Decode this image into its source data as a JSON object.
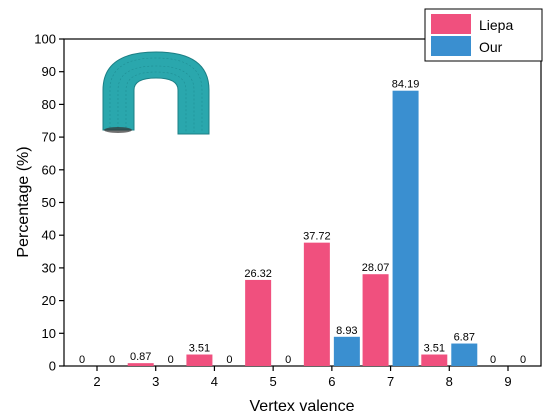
{
  "chart_data": {
    "type": "bar",
    "xlabel": "Vertex valence",
    "ylabel": "Percentage (%)",
    "ylim": [
      0,
      100
    ],
    "yticks": [
      0,
      10,
      20,
      30,
      40,
      50,
      60,
      70,
      80,
      90,
      100
    ],
    "categories": [
      "2",
      "3",
      "4",
      "5",
      "6",
      "7",
      "8",
      "9"
    ],
    "series": [
      {
        "name": "Liepa",
        "color": "#f0507e",
        "values": [
          0,
          0.87,
          3.51,
          26.32,
          37.72,
          28.07,
          3.51,
          0
        ],
        "labels": [
          "0",
          "0.87",
          "3.51",
          "26.32",
          "37.72",
          "28.07",
          "3.51",
          "0"
        ]
      },
      {
        "name": "Our",
        "color": "#3a8fd0",
        "values": [
          0,
          0,
          0,
          0,
          8.93,
          84.19,
          6.87,
          0
        ],
        "labels": [
          "0",
          "0",
          "0",
          "0",
          "8.93",
          "84.19",
          "6.87",
          "0"
        ]
      }
    ],
    "legend": "top-right",
    "grid": false,
    "inset_icon": "teal-mesh-arch-icon",
    "inset_color": "#2aa7ad"
  }
}
